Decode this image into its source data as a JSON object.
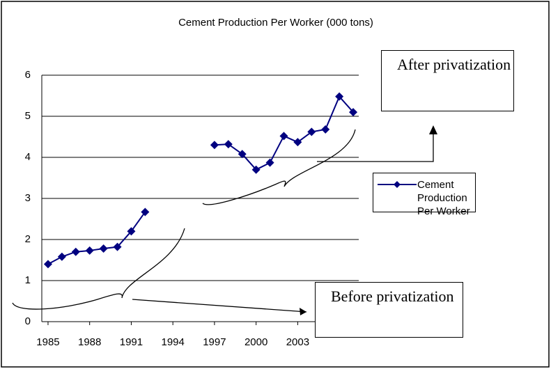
{
  "chart_data": {
    "type": "line",
    "title": "Cement Production Per Worker (000 tons)",
    "x": [
      1985,
      1986,
      1987,
      1988,
      1989,
      1990,
      1991,
      1992,
      1993,
      1994,
      1995,
      1996,
      1997,
      1998,
      1999,
      2000,
      2001,
      2002,
      2003,
      2004,
      2005,
      2006,
      2007
    ],
    "series": [
      {
        "name": "Cement Production Per Worker",
        "color": "#000080",
        "values": [
          1.4,
          1.58,
          1.7,
          1.73,
          1.78,
          1.82,
          2.2,
          2.67,
          null,
          null,
          null,
          null,
          4.3,
          4.32,
          4.08,
          3.7,
          3.87,
          4.52,
          4.37,
          4.62,
          4.68,
          5.48,
          5.1
        ]
      }
    ],
    "xlim": [
      1984.55,
      2007.4
    ],
    "xticks": [
      1985,
      1988,
      1991,
      1994,
      1997,
      2000,
      2003
    ],
    "ylim": [
      0,
      6
    ],
    "yticks": [
      0,
      1,
      2,
      3,
      4,
      5,
      6
    ],
    "grid": true,
    "legend": "right",
    "annotations": [
      "After privatization",
      "Before privatization"
    ]
  }
}
